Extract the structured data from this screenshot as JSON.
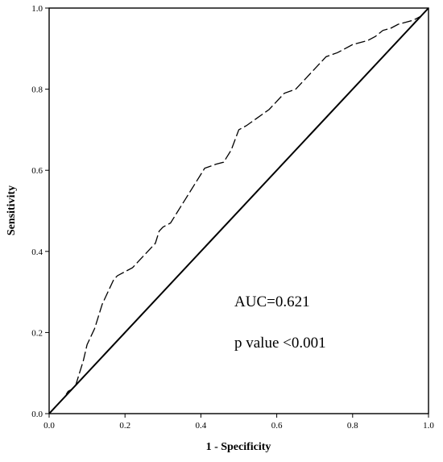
{
  "chart_data": {
    "type": "line",
    "title": "",
    "xlabel": "1 - Specificity",
    "ylabel": "Sensitivity",
    "xlim": [
      0,
      1
    ],
    "ylim": [
      0,
      1
    ],
    "xticks": [
      "0.0",
      "0.2",
      "0.4",
      "0.6",
      "0.8",
      "1.0"
    ],
    "yticks": [
      "0.0",
      "0.2",
      "0.4",
      "0.6",
      "0.8",
      "1.0"
    ],
    "grid": false,
    "legend": "none",
    "series": [
      {
        "style": "dashed",
        "x": [
          0,
          0.01,
          0.02,
          0.03,
          0.04,
          0.05,
          0.06,
          0.07,
          0.08,
          0.09,
          0.1,
          0.11,
          0.12,
          0.13,
          0.14,
          0.15,
          0.16,
          0.17,
          0.18,
          0.19,
          0.2,
          0.22,
          0.24,
          0.26,
          0.28,
          0.29,
          0.3,
          0.32,
          0.34,
          0.36,
          0.38,
          0.4,
          0.41,
          0.44,
          0.46,
          0.48,
          0.5,
          0.52,
          0.55,
          0.58,
          0.6,
          0.62,
          0.65,
          0.68,
          0.7,
          0.73,
          0.76,
          0.8,
          0.82,
          0.84,
          0.86,
          0.88,
          0.9,
          0.92,
          0.94,
          0.96,
          0.98,
          1.0
        ],
        "y": [
          0,
          0.01,
          0.02,
          0.03,
          0.04,
          0.055,
          0.06,
          0.07,
          0.1,
          0.13,
          0.17,
          0.19,
          0.21,
          0.24,
          0.27,
          0.29,
          0.31,
          0.33,
          0.34,
          0.345,
          0.35,
          0.36,
          0.38,
          0.4,
          0.42,
          0.45,
          0.46,
          0.47,
          0.5,
          0.53,
          0.56,
          0.59,
          0.605,
          0.615,
          0.62,
          0.65,
          0.7,
          0.71,
          0.73,
          0.75,
          0.77,
          0.79,
          0.8,
          0.83,
          0.85,
          0.88,
          0.89,
          0.91,
          0.915,
          0.92,
          0.93,
          0.945,
          0.95,
          0.96,
          0.965,
          0.97,
          0.98,
          1.0
        ]
      },
      {
        "style": "solid",
        "x": [
          0,
          1
        ],
        "y": [
          0,
          1
        ]
      }
    ],
    "annotations": [
      "AUC=0.621",
      "p value <0.001"
    ]
  }
}
